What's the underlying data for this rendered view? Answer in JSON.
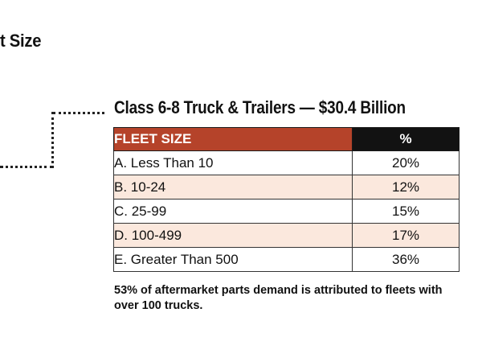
{
  "partial_title": "t Size",
  "table": {
    "title": "Class 6-8 Truck & Trailers — $30.4 Billion",
    "headers": [
      "FLEET SIZE",
      "%"
    ],
    "rows": [
      {
        "size": "A. Less Than 10",
        "pct": "20%"
      },
      {
        "size": "B. 10-24",
        "pct": "12%"
      },
      {
        "size": "C. 25-99",
        "pct": "15%"
      },
      {
        "size": "D. 100-499",
        "pct": "17%"
      },
      {
        "size": "E. Greater Than 500",
        "pct": "36%"
      }
    ]
  },
  "footnote": "53% of aftermarket parts demand is attributed to fleets with over 100 trucks.",
  "colors": {
    "header_accent": "#b5432a",
    "header_dark": "#121212",
    "row_tint": "#fbe8dd"
  }
}
